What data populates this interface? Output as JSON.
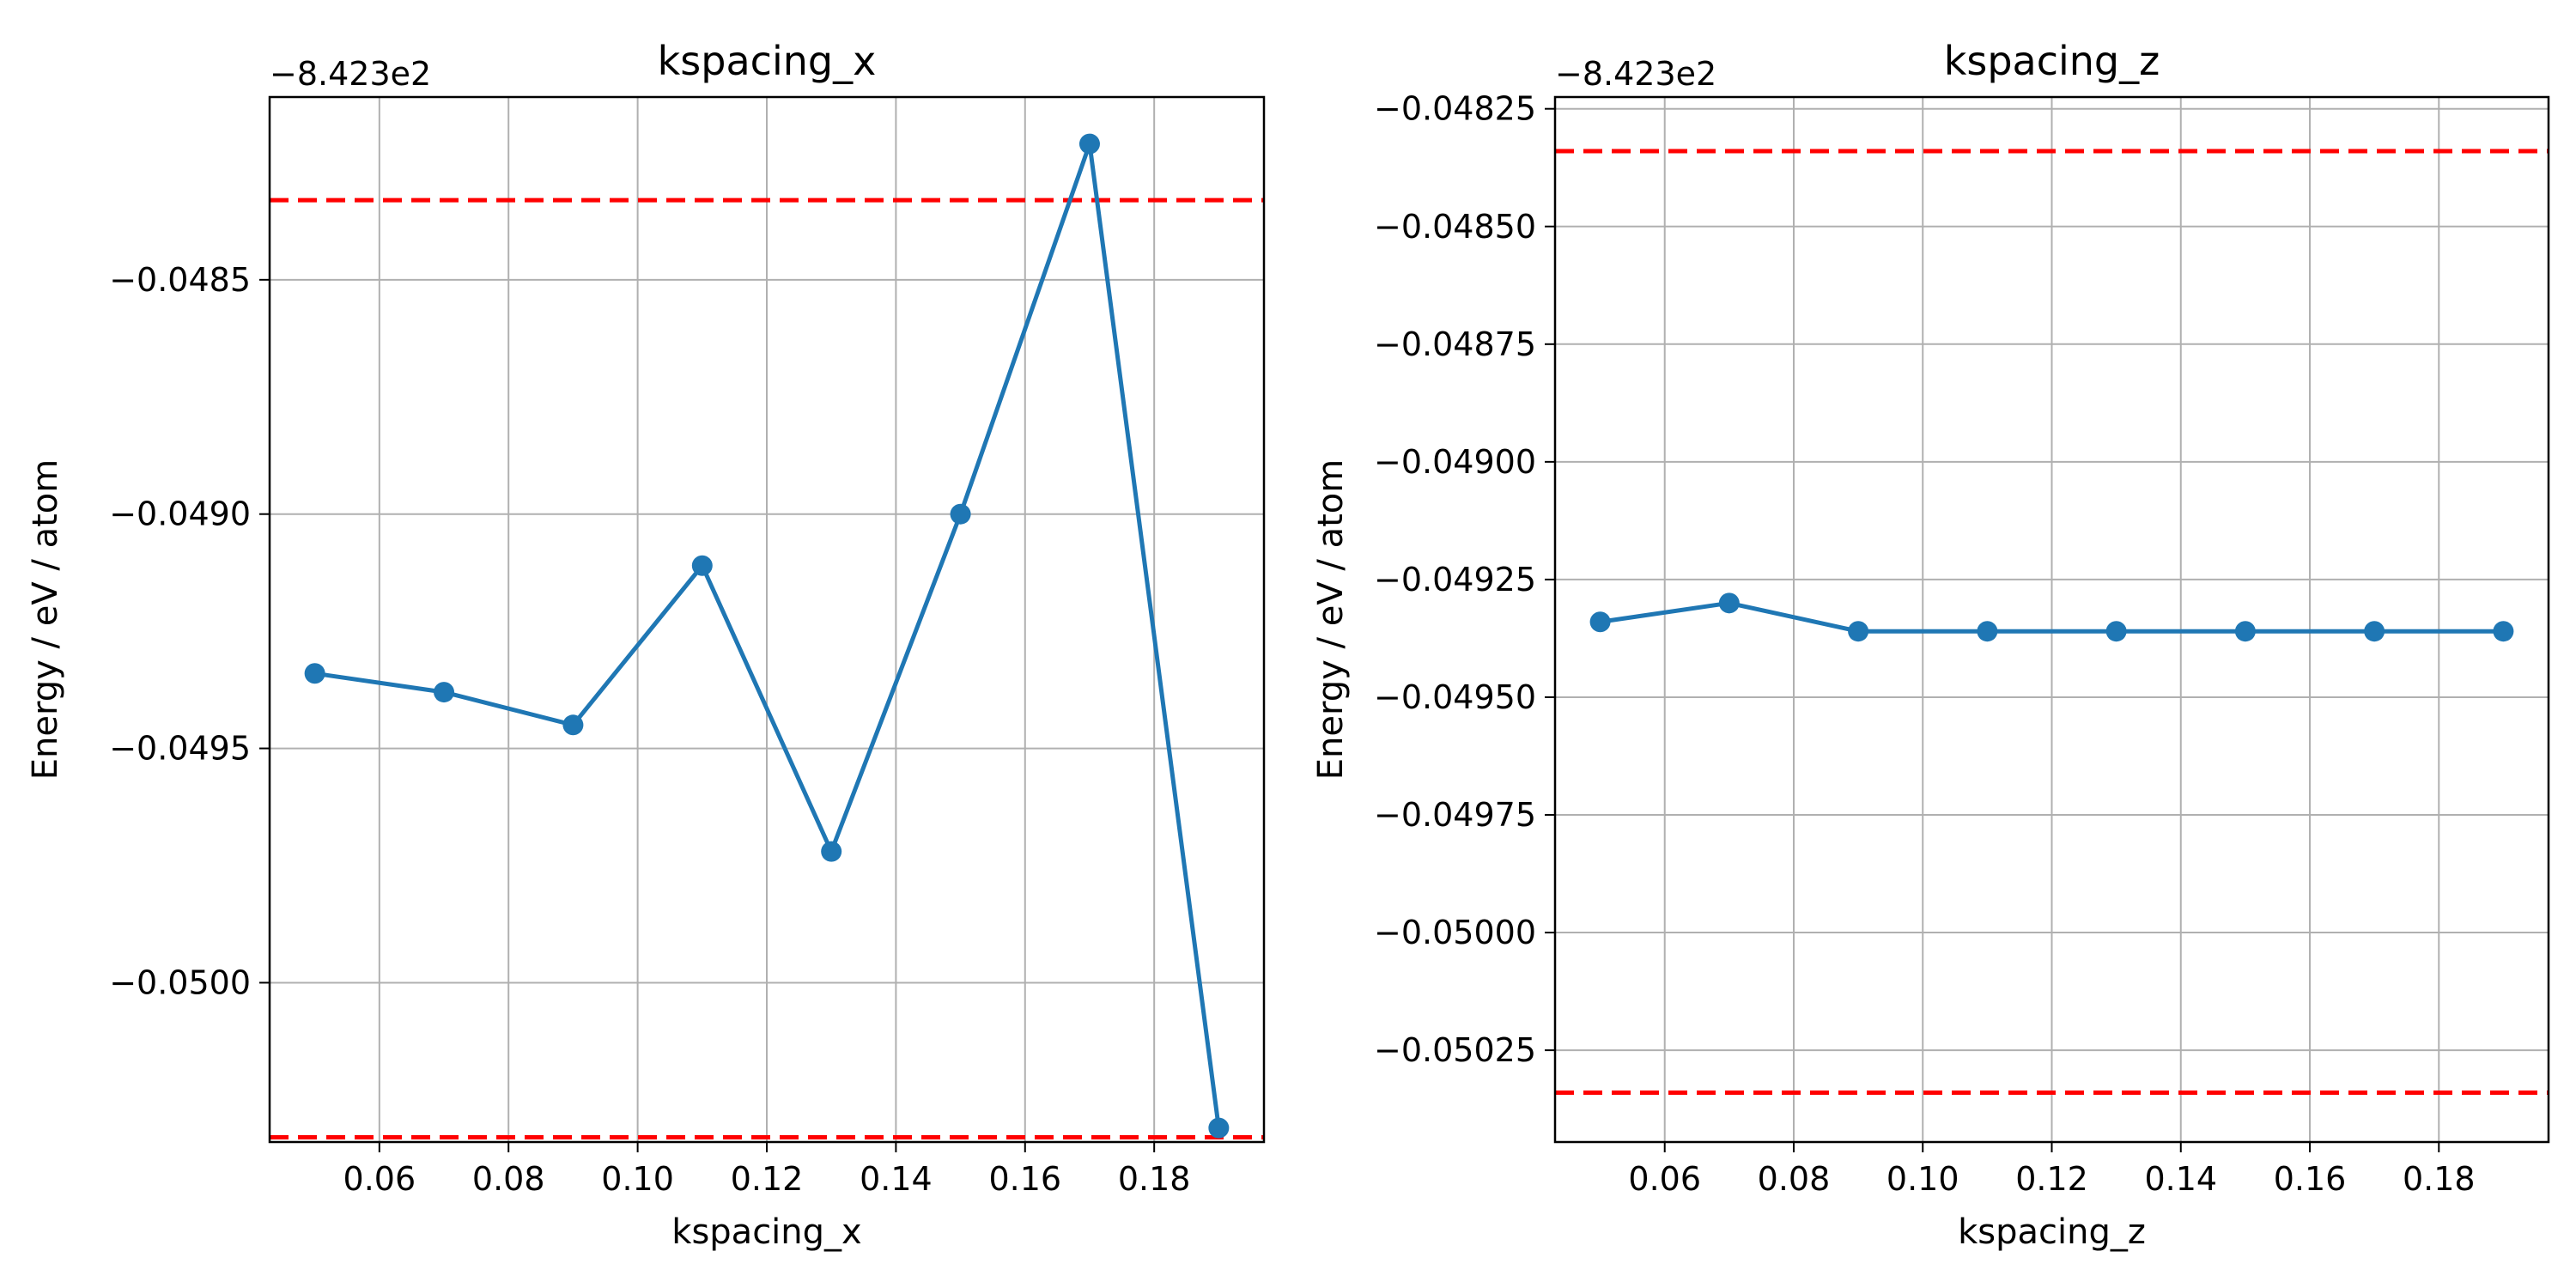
{
  "colors": {
    "series": "#1f77b4",
    "reference_line": "#ff0000",
    "grid": "#b0b0b0",
    "axes": "#000000"
  },
  "chart_data": [
    {
      "type": "line",
      "title": "kspacing_x",
      "xlabel": "kspacing_x",
      "ylabel": "Energy / eV / atom",
      "offset_text": "−8.423e2",
      "grid": true,
      "xlim": [
        0.043,
        0.197
      ],
      "ylim": [
        -0.05034,
        -0.04811
      ],
      "xticks": [
        {
          "value": 0.06,
          "label": "0.06"
        },
        {
          "value": 0.08,
          "label": "0.08"
        },
        {
          "value": 0.1,
          "label": "0.10"
        },
        {
          "value": 0.12,
          "label": "0.12"
        },
        {
          "value": 0.14,
          "label": "0.14"
        },
        {
          "value": 0.16,
          "label": "0.16"
        },
        {
          "value": 0.18,
          "label": "0.18"
        }
      ],
      "yticks": [
        {
          "value": -0.0485,
          "label": "−0.0485"
        },
        {
          "value": -0.049,
          "label": "−0.0490"
        },
        {
          "value": -0.0495,
          "label": "−0.0495"
        },
        {
          "value": -0.05,
          "label": "−0.0500"
        }
      ],
      "series": [
        {
          "x": [
            0.05,
            0.07,
            0.09,
            0.11,
            0.13,
            0.15,
            0.17,
            0.19
          ],
          "y": [
            -0.04934,
            -0.04938,
            -0.04945,
            -0.04911,
            -0.04972,
            -0.049,
            -0.04821,
            -0.05031
          ]
        }
      ],
      "reference_lines": [
        -0.04833,
        -0.05033
      ]
    },
    {
      "type": "line",
      "title": "kspacing_z",
      "xlabel": "kspacing_z",
      "ylabel": "Energy / eV / atom",
      "offset_text": "−8.423e2",
      "grid": true,
      "xlim": [
        0.043,
        0.197
      ],
      "ylim": [
        -0.050445,
        -0.048225
      ],
      "xticks": [
        {
          "value": 0.06,
          "label": "0.06"
        },
        {
          "value": 0.08,
          "label": "0.08"
        },
        {
          "value": 0.1,
          "label": "0.10"
        },
        {
          "value": 0.12,
          "label": "0.12"
        },
        {
          "value": 0.14,
          "label": "0.14"
        },
        {
          "value": 0.16,
          "label": "0.16"
        },
        {
          "value": 0.18,
          "label": "0.18"
        }
      ],
      "yticks": [
        {
          "value": -0.04825,
          "label": "−0.04825"
        },
        {
          "value": -0.0485,
          "label": "−0.04850"
        },
        {
          "value": -0.04875,
          "label": "−0.04875"
        },
        {
          "value": -0.049,
          "label": "−0.04900"
        },
        {
          "value": -0.04925,
          "label": "−0.04925"
        },
        {
          "value": -0.0495,
          "label": "−0.04950"
        },
        {
          "value": -0.04975,
          "label": "−0.04975"
        },
        {
          "value": -0.05,
          "label": "−0.05000"
        },
        {
          "value": -0.05025,
          "label": "−0.05025"
        }
      ],
      "series": [
        {
          "x": [
            0.05,
            0.07,
            0.09,
            0.11,
            0.13,
            0.15,
            0.17,
            0.19
          ],
          "y": [
            -0.04934,
            -0.0493,
            -0.04936,
            -0.04936,
            -0.04936,
            -0.04936,
            -0.04936,
            -0.04936
          ]
        }
      ],
      "reference_lines": [
        -0.04834,
        -0.05034
      ]
    }
  ]
}
